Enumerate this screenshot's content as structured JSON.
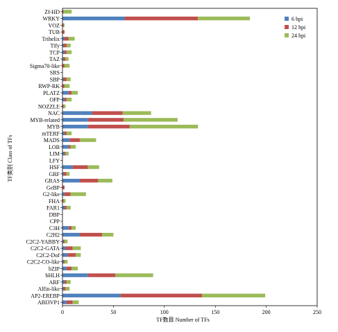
{
  "chart_data": {
    "type": "bar",
    "orientation": "horizontal",
    "stacked": true,
    "categories": [
      "Zf-HD",
      "WRKY",
      "VOZ",
      "TUB",
      "Trihelix",
      "Tify",
      "TCP",
      "TAZ",
      "Sigma70-like",
      "SRS",
      "SBP",
      "RWP-RK",
      "PLATZ",
      "OFP",
      "NOZZLE",
      "NAC",
      "MYB-related",
      "MYB",
      "mTERF",
      "MADS",
      "LOB",
      "LIM",
      "LFY",
      "HSF",
      "GRF",
      "GRAS",
      "GeBP",
      "G2-like",
      "FHA",
      "FAR1",
      "DBP",
      "CPP",
      "C3H",
      "C2H2",
      "C2C2-YABBY",
      "C2C2-GATA",
      "C2C2-Dof",
      "C2C2-CO-like",
      "bZIP",
      "bHLH",
      "ARF",
      "Alfin-like",
      "AP2-EREBP",
      "ABI3VP1"
    ],
    "series": [
      {
        "name": "6 hpi",
        "color": "#4f81bd",
        "values": [
          0,
          61,
          0,
          0,
          2,
          1,
          2,
          1,
          0,
          0,
          1,
          0,
          6,
          2,
          0,
          29,
          25,
          25,
          2,
          7,
          6,
          2,
          0,
          10,
          1,
          17,
          0,
          2,
          0,
          2,
          0,
          0,
          6,
          17,
          1,
          3,
          5,
          1,
          4,
          25,
          2,
          1,
          57,
          4
        ]
      },
      {
        "name": "12 hpi",
        "color": "#c0504d",
        "values": [
          1,
          72,
          1,
          2,
          4,
          3,
          2,
          2,
          2,
          0,
          3,
          2,
          3,
          2,
          1,
          30,
          35,
          41,
          2,
          10,
          2,
          1,
          0,
          15,
          3,
          18,
          2,
          6,
          1,
          2,
          0,
          0,
          3,
          22,
          1,
          7,
          8,
          1,
          5,
          27,
          2,
          2,
          80,
          6
        ]
      },
      {
        "name": "24 hpi",
        "color": "#9bbb59",
        "values": [
          8,
          51,
          1,
          0,
          6,
          4,
          5,
          3,
          5,
          0,
          4,
          5,
          6,
          5,
          2,
          28,
          53,
          67,
          5,
          16,
          5,
          3,
          0,
          11,
          3,
          14,
          0,
          15,
          2,
          4,
          0,
          0,
          4,
          11,
          3,
          8,
          5,
          3,
          6,
          37,
          4,
          4,
          62,
          6
        ]
      }
    ],
    "xlabel": "TF数目 Number of TFs",
    "ylabel": "TF类别 Class of TFs",
    "xlim": [
      0,
      250
    ],
    "xticks": [
      0,
      50,
      100,
      150,
      200,
      250
    ],
    "legend_position": "top-right",
    "grid": false
  }
}
